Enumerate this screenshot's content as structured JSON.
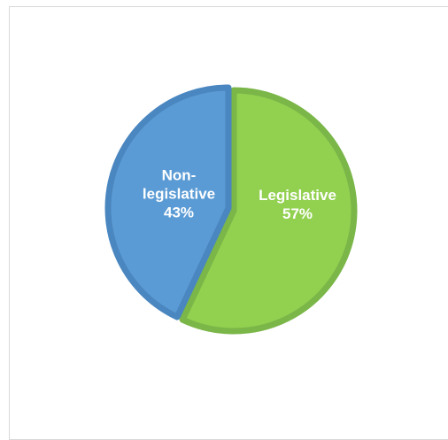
{
  "chart_data": {
    "type": "pie",
    "slices": [
      {
        "category": "Legislative",
        "value": 57,
        "label_lines": [
          "Legislative"
        ],
        "value_label": "57%",
        "color": "#92d050",
        "border_color": "#7ab648"
      },
      {
        "category": "Non-legislative",
        "value": 43,
        "label_lines": [
          "Non-",
          "legislative"
        ],
        "value_label": "43%",
        "color": "#5b9bd5",
        "border_color": "#4a86bf"
      }
    ],
    "start_angle_deg": 0,
    "direction": "clockwise",
    "legend": "none"
  }
}
